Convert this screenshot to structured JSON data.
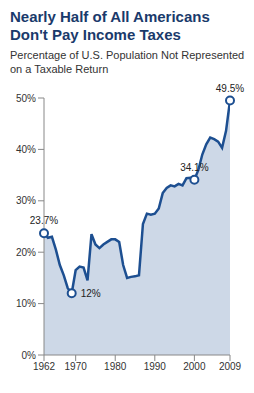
{
  "chart_data": {
    "type": "area",
    "title": "Nearly Half of All Americans Don't Pay Income Taxes",
    "subtitle": "Percentage of U.S. Population Not Represented on a Taxable Return",
    "x": [
      1962,
      1963,
      1964,
      1965,
      1966,
      1967,
      1968,
      1969,
      1970,
      1971,
      1972,
      1973,
      1974,
      1975,
      1976,
      1977,
      1978,
      1979,
      1980,
      1981,
      1982,
      1983,
      1984,
      1985,
      1986,
      1987,
      1988,
      1989,
      1990,
      1991,
      1992,
      1993,
      1994,
      1995,
      1996,
      1997,
      1998,
      1999,
      2000,
      2001,
      2002,
      2003,
      2004,
      2005,
      2006,
      2007,
      2008,
      2009
    ],
    "values": [
      23.7,
      22.8,
      23,
      20.5,
      17.5,
      15.5,
      13,
      12,
      16.5,
      17.2,
      17,
      14.5,
      23.5,
      21.5,
      20.8,
      21.5,
      22,
      22.5,
      22.5,
      22,
      17.5,
      15,
      15.2,
      15.3,
      15.5,
      25.5,
      27.5,
      27.3,
      27.5,
      28.5,
      31.5,
      32.5,
      33,
      32.8,
      33.3,
      33,
      34.4,
      34.5,
      34.1,
      36,
      39,
      41,
      42.3,
      42,
      41.5,
      40.3,
      43.6,
      49.5
    ],
    "color": "#1d4f91",
    "xlim": [
      1962,
      2009
    ],
    "xticks": [
      1962,
      1970,
      1980,
      1990,
      2000,
      2009
    ],
    "ylim": [
      0,
      50
    ],
    "yticks": [
      {
        "value": 0,
        "label": "0%"
      },
      {
        "value": 10,
        "label": "10%"
      },
      {
        "value": 20,
        "label": "20%"
      },
      {
        "value": 30,
        "label": "30%"
      },
      {
        "value": 40,
        "label": "40%"
      },
      {
        "value": 50,
        "label": "50%"
      }
    ],
    "annotations": [
      {
        "x": 1962,
        "y": 23.7,
        "label": "23.7%"
      },
      {
        "x": 1969,
        "y": 12,
        "label": "12%"
      },
      {
        "x": 2000,
        "y": 34.1,
        "label": "34.1%"
      },
      {
        "x": 2009,
        "y": 49.5,
        "label": "49.5%"
      }
    ],
    "grid": false
  }
}
